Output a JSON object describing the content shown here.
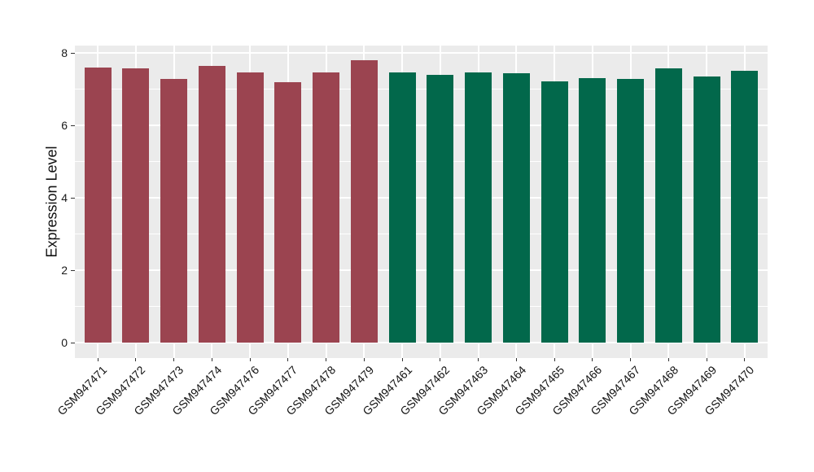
{
  "chart_data": {
    "type": "bar",
    "title": "",
    "xlabel": "",
    "ylabel": "Expression Level",
    "ylim": [
      0,
      8.2
    ],
    "yticks": [
      0,
      2,
      4,
      6,
      8
    ],
    "yminorticks": [
      1,
      3,
      5,
      7
    ],
    "grid": true,
    "legend": false,
    "panel_bg": "#EBEBEB",
    "grid_major_color": "#FFFFFF",
    "grid_minor_color": "#FFFFFF",
    "tick_color": "#333333",
    "text_color": "#1a1a1a",
    "group_colors": [
      "#9B4450",
      "#02684B"
    ],
    "bars": [
      {
        "label": "GSM947471",
        "value": 7.6,
        "group": 0
      },
      {
        "label": "GSM947472",
        "value": 7.58,
        "group": 0
      },
      {
        "label": "GSM947473",
        "value": 7.29,
        "group": 0
      },
      {
        "label": "GSM947474",
        "value": 7.63,
        "group": 0
      },
      {
        "label": "GSM947476",
        "value": 7.47,
        "group": 0
      },
      {
        "label": "GSM947477",
        "value": 7.18,
        "group": 0
      },
      {
        "label": "GSM947478",
        "value": 7.45,
        "group": 0
      },
      {
        "label": "GSM947479",
        "value": 7.8,
        "group": 0
      },
      {
        "label": "GSM947461",
        "value": 7.46,
        "group": 1
      },
      {
        "label": "GSM947462",
        "value": 7.4,
        "group": 1
      },
      {
        "label": "GSM947463",
        "value": 7.47,
        "group": 1
      },
      {
        "label": "GSM947464",
        "value": 7.44,
        "group": 1
      },
      {
        "label": "GSM947465",
        "value": 7.21,
        "group": 1
      },
      {
        "label": "GSM947466",
        "value": 7.31,
        "group": 1
      },
      {
        "label": "GSM947467",
        "value": 7.28,
        "group": 1
      },
      {
        "label": "GSM947468",
        "value": 7.58,
        "group": 1
      },
      {
        "label": "GSM947469",
        "value": 7.34,
        "group": 1
      },
      {
        "label": "GSM947470",
        "value": 7.5,
        "group": 1
      }
    ]
  }
}
